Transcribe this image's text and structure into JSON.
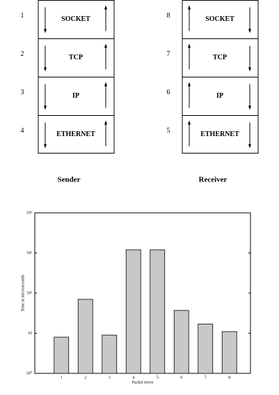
{
  "diagram": {
    "sender": {
      "label": "Sender",
      "layers": [
        {
          "number": "1",
          "name": "SOCKET"
        },
        {
          "number": "2",
          "name": "TCP"
        },
        {
          "number": "3",
          "name": "IP"
        },
        {
          "number": "4",
          "name": "ETHERNET"
        }
      ]
    },
    "receiver": {
      "label": "Receiver",
      "layers": [
        {
          "number": "8",
          "name": "SOCKET"
        },
        {
          "number": "7",
          "name": "TCP"
        },
        {
          "number": "6",
          "name": "IP"
        },
        {
          "number": "5",
          "name": "ETHERNET"
        }
      ]
    }
  },
  "chart_data": {
    "type": "bar",
    "x_label": "Packet move",
    "y_label": "Time in microseconds",
    "categories": [
      "1",
      "2",
      "3",
      "4",
      "5",
      "6",
      "7",
      "8"
    ],
    "values": [
      8,
      70,
      9,
      1200,
      1200,
      37,
      17,
      11
    ],
    "color": "#c8c8c8",
    "log_scale": true,
    "ylim": [
      1,
      10000
    ],
    "yticks": [
      {
        "value": 1,
        "label": "10⁰"
      },
      10,
      {
        "value": 100,
        "label": "10²"
      },
      {
        "value": 1000,
        "label": "10³"
      },
      {
        "value": 10000,
        "label": "10⁴"
      }
    ]
  }
}
